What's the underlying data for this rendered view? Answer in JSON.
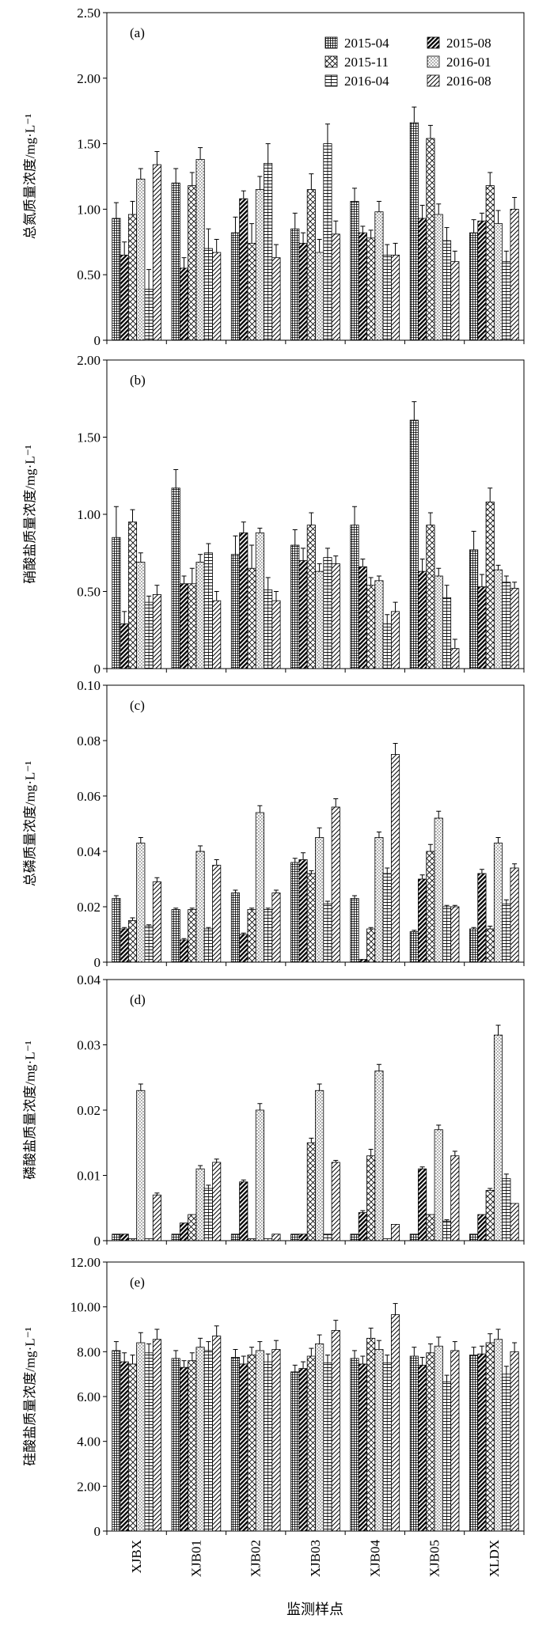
{
  "chart_data": {
    "type": "bar",
    "grid": false,
    "legend_position": "top-right",
    "legend_panel": "(a)",
    "xlabel": "监测样点",
    "categories": [
      "XJBX",
      "XJB01",
      "XJB02",
      "XJB03",
      "XJB04",
      "XJB05",
      "XLDX"
    ],
    "series": [
      {
        "name": "2015-04",
        "pattern": "fine-grid"
      },
      {
        "name": "2015-08",
        "pattern": "diag-dense"
      },
      {
        "name": "2015-11",
        "pattern": "crosshatch"
      },
      {
        "name": "2016-01",
        "pattern": "dots"
      },
      {
        "name": "2016-04",
        "pattern": "ladder"
      },
      {
        "name": "2016-08",
        "pattern": "diag"
      }
    ],
    "panels": [
      {
        "label": "(a)",
        "ylabel": "总氮质量浓度/mg·L⁻¹",
        "ylim": [
          0,
          2.5
        ],
        "yticks": [
          0,
          0.5,
          1,
          1.5,
          2,
          2.5
        ],
        "ytick_labels": [
          "0",
          "0.50",
          "1.00",
          "1.50",
          "2.00",
          "2.50"
        ],
        "values": [
          [
            0.93,
            1.2,
            0.82,
            0.85,
            1.06,
            1.66,
            0.82
          ],
          [
            0.65,
            0.55,
            1.08,
            0.74,
            0.82,
            0.93,
            0.91
          ],
          [
            0.96,
            1.18,
            0.74,
            1.15,
            0.78,
            1.54,
            1.18
          ],
          [
            1.23,
            1.38,
            1.15,
            0.67,
            0.98,
            0.96,
            0.89
          ],
          [
            0.39,
            0.7,
            1.35,
            1.5,
            0.65,
            0.76,
            0.6
          ],
          [
            1.34,
            0.67,
            0.63,
            0.81,
            0.65,
            0.6,
            1.0
          ]
        ],
        "errors": [
          [
            0.12,
            0.11,
            0.12,
            0.12,
            0.1,
            0.12,
            0.1
          ],
          [
            0.1,
            0.08,
            0.06,
            0.08,
            0.05,
            0.1,
            0.06
          ],
          [
            0.1,
            0.1,
            0.15,
            0.12,
            0.06,
            0.1,
            0.1
          ],
          [
            0.08,
            0.09,
            0.1,
            0.1,
            0.08,
            0.08,
            0.1
          ],
          [
            0.15,
            0.15,
            0.15,
            0.15,
            0.08,
            0.1,
            0.08
          ],
          [
            0.1,
            0.1,
            0.1,
            0.1,
            0.09,
            0.08,
            0.09
          ]
        ]
      },
      {
        "label": "(b)",
        "ylabel": "硝酸盐质量浓度/mg·L⁻¹",
        "ylim": [
          0,
          2.0
        ],
        "yticks": [
          0,
          0.5,
          1,
          1.5,
          2
        ],
        "ytick_labels": [
          "0",
          "0.50",
          "1.00",
          "1.50",
          "2.00"
        ],
        "values": [
          [
            0.85,
            1.17,
            0.74,
            0.8,
            0.93,
            1.61,
            0.77
          ],
          [
            0.29,
            0.55,
            0.88,
            0.7,
            0.66,
            0.63,
            0.53
          ],
          [
            0.95,
            0.55,
            0.65,
            0.93,
            0.54,
            0.93,
            1.08
          ],
          [
            0.69,
            0.69,
            0.88,
            0.63,
            0.57,
            0.6,
            0.64
          ],
          [
            0.43,
            0.75,
            0.51,
            0.72,
            0.29,
            0.46,
            0.56
          ],
          [
            0.48,
            0.44,
            0.44,
            0.68,
            0.37,
            0.13,
            0.52
          ]
        ],
        "errors": [
          [
            0.2,
            0.12,
            0.12,
            0.1,
            0.12,
            0.12,
            0.12
          ],
          [
            0.08,
            0.05,
            0.07,
            0.08,
            0.05,
            0.08,
            0.08
          ],
          [
            0.08,
            0.1,
            0.15,
            0.08,
            0.05,
            0.08,
            0.09
          ],
          [
            0.06,
            0.05,
            0.03,
            0.05,
            0.03,
            0.05,
            0.03
          ],
          [
            0.04,
            0.06,
            0.08,
            0.06,
            0.06,
            0.08,
            0.04
          ],
          [
            0.06,
            0.06,
            0.06,
            0.05,
            0.06,
            0.06,
            0.04
          ]
        ]
      },
      {
        "label": "(c)",
        "ylabel": "总磷质量浓度/mg·L⁻¹",
        "ylim": [
          0,
          0.1
        ],
        "yticks": [
          0,
          0.02,
          0.04,
          0.06,
          0.08,
          0.1
        ],
        "ytick_labels": [
          "0",
          "0.02",
          "0.04",
          "0.06",
          "0.08",
          "0.10"
        ],
        "values": [
          [
            0.023,
            0.019,
            0.025,
            0.036,
            0.023,
            0.011,
            0.012
          ],
          [
            0.012,
            0.008,
            0.01,
            0.037,
            0.001,
            0.03,
            0.032
          ],
          [
            0.015,
            0.019,
            0.019,
            0.032,
            0.012,
            0.04,
            0.012
          ],
          [
            0.043,
            0.04,
            0.054,
            0.045,
            0.045,
            0.052,
            0.043
          ],
          [
            0.013,
            0.012,
            0.019,
            0.021,
            0.032,
            0.02,
            0.021
          ],
          [
            0.029,
            0.035,
            0.025,
            0.056,
            0.075,
            0.02,
            0.034
          ]
        ],
        "errors": [
          [
            0.001,
            0.0005,
            0.001,
            0.0015,
            0.001,
            0.0005,
            0.0005
          ],
          [
            0.0005,
            0.0005,
            0.0005,
            0.0025,
            0,
            0.0015,
            0.0015
          ],
          [
            0.001,
            0.0005,
            0.0005,
            0.001,
            0.0005,
            0.0025,
            0.001
          ],
          [
            0.002,
            0.002,
            0.0025,
            0.0035,
            0.002,
            0.0025,
            0.002
          ],
          [
            0.0005,
            0.0005,
            0.0005,
            0.001,
            0.002,
            0.0005,
            0.0015
          ],
          [
            0.0015,
            0.002,
            0.001,
            0.003,
            0.004,
            0.0005,
            0.0015
          ]
        ]
      },
      {
        "label": "(d)",
        "ylabel": "磷酸盐质量浓度/mg·L⁻¹",
        "ylim": [
          0,
          0.04
        ],
        "yticks": [
          0,
          0.01,
          0.02,
          0.03,
          0.04
        ],
        "ytick_labels": [
          "0",
          "0.01",
          "0.02",
          "0.03",
          "0.04"
        ],
        "values": [
          [
            0.001,
            0.001,
            0.001,
            0.001,
            0.001,
            0.001,
            0.001
          ],
          [
            0.001,
            0.0027,
            0.009,
            0.001,
            0.0043,
            0.011,
            0.004
          ],
          [
            0.0003,
            0.004,
            0.0003,
            0.015,
            0.013,
            0.004,
            0.0077
          ],
          [
            0.023,
            0.011,
            0.02,
            0.023,
            0.026,
            0.017,
            0.0315
          ],
          [
            0.0003,
            0.008,
            0.0003,
            0.001,
            0.0003,
            0.003,
            0.0095
          ],
          [
            0.007,
            0.012,
            0.001,
            0.012,
            0.0025,
            0.013,
            0.0057
          ]
        ],
        "errors": [
          [
            0,
            0,
            0,
            0,
            0,
            0,
            0
          ],
          [
            0,
            0,
            0.0003,
            0,
            0.0003,
            0.0003,
            0
          ],
          [
            0,
            0,
            0,
            0.0007,
            0.001,
            0,
            0.0003
          ],
          [
            0.001,
            0.0005,
            0.001,
            0.001,
            0.001,
            0.0007,
            0.0015
          ],
          [
            0,
            0.0005,
            0,
            0,
            0,
            0.0002,
            0.0007
          ],
          [
            0.0003,
            0.0005,
            0,
            0.0003,
            0,
            0.0007,
            0
          ]
        ]
      },
      {
        "label": "(e)",
        "ylabel": "硅酸盐质量浓度/mg·L⁻¹",
        "ylim": [
          0,
          12
        ],
        "yticks": [
          0,
          2,
          4,
          6,
          8,
          10,
          12
        ],
        "ytick_labels": [
          "0",
          "2.00",
          "4.00",
          "6.00",
          "8.00",
          "10.00",
          "12.00"
        ],
        "values": [
          [
            8.05,
            7.7,
            7.75,
            7.1,
            7.7,
            7.8,
            7.85
          ],
          [
            7.55,
            7.3,
            7.45,
            7.25,
            7.45,
            7.4,
            7.9
          ],
          [
            7.45,
            7.6,
            7.85,
            7.8,
            8.6,
            7.95,
            8.4
          ],
          [
            8.4,
            8.2,
            8.05,
            8.35,
            8.1,
            8.25,
            8.55
          ],
          [
            7.95,
            8.05,
            7.55,
            7.5,
            7.5,
            6.65,
            7.0
          ],
          [
            8.55,
            8.7,
            8.1,
            8.95,
            9.65,
            8.05,
            8.0
          ]
        ],
        "errors": [
          [
            0.4,
            0.35,
            0.35,
            0.3,
            0.35,
            0.4,
            0.35
          ],
          [
            0.4,
            0.3,
            0.35,
            0.3,
            0.35,
            0.35,
            0.35
          ],
          [
            0.4,
            0.35,
            0.35,
            0.35,
            0.45,
            0.4,
            0.4
          ],
          [
            0.45,
            0.4,
            0.4,
            0.4,
            0.4,
            0.4,
            0.45
          ],
          [
            0.4,
            0.4,
            0.35,
            0.35,
            0.35,
            0.3,
            0.35
          ],
          [
            0.45,
            0.45,
            0.4,
            0.45,
            0.5,
            0.4,
            0.4
          ]
        ]
      }
    ]
  }
}
